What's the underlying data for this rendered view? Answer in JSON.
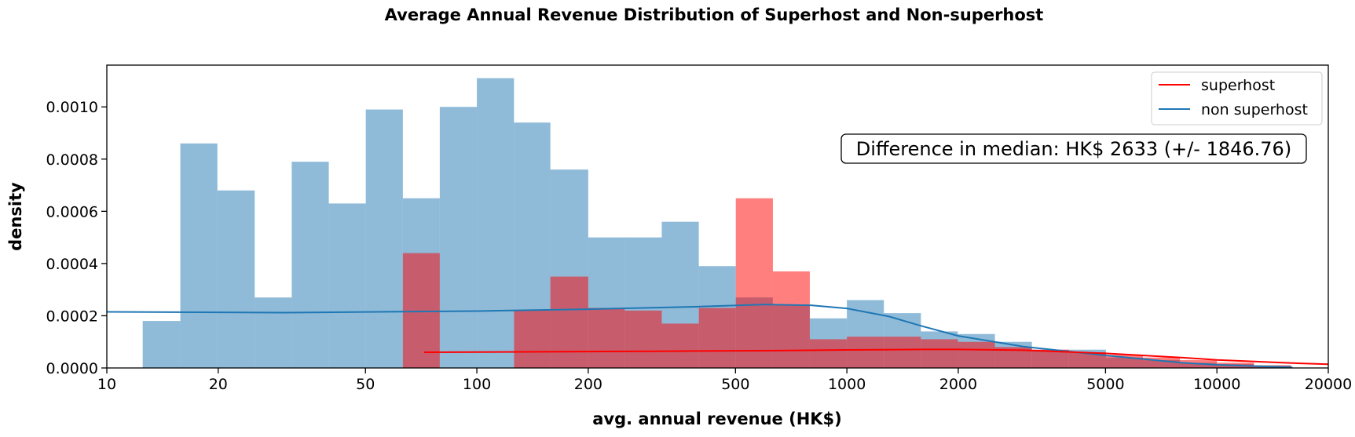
{
  "chart_data": {
    "type": "histogram",
    "title": "Average Annual Revenue Distribution of Superhost and Non-superhost",
    "xlabel": "avg. annual revenue (HK$)",
    "ylabel": "density",
    "xscale": "log",
    "xlim": [
      10,
      20000
    ],
    "ylim": [
      0,
      0.00116
    ],
    "xticks": [
      10,
      20,
      50,
      100,
      200,
      500,
      1000,
      2000,
      5000,
      10000,
      20000
    ],
    "xtick_labels": [
      "10",
      "20",
      "50",
      "100",
      "200",
      "500",
      "1000",
      "2000",
      "5000",
      "10000",
      "20000"
    ],
    "yticks": [
      0,
      0.0002,
      0.0004,
      0.0006,
      0.0008,
      0.001
    ],
    "ytick_labels": [
      "0.0000",
      "0.0002",
      "0.0004",
      "0.0006",
      "0.0008",
      "0.0010"
    ],
    "grid": false,
    "legend_position": "top-right",
    "bin_edges": [
      12.5,
      15.8,
      19.9,
      25.1,
      31.6,
      39.8,
      50.1,
      63.1,
      79.4,
      100,
      126,
      158,
      200,
      251,
      316,
      398,
      501,
      631,
      794,
      1000,
      1259,
      1585,
      1995,
      2512,
      3162,
      3981,
      5012,
      6310,
      7943,
      10000,
      12589,
      15849
    ],
    "series": [
      {
        "name": "non superhost",
        "color": "#1f77b4",
        "bar_color": "#8fb8d9",
        "densities": [
          0.00018,
          0.00086,
          0.00068,
          0.00027,
          0.00079,
          0.00063,
          0.00099,
          0.00065,
          0.001,
          0.00111,
          0.00094,
          0.00076,
          0.0005,
          0.0005,
          0.00056,
          0.00039,
          0.00027,
          0.00024,
          0.00019,
          0.00026,
          0.00021,
          0.00014,
          0.00013,
          0.0001,
          7e-05,
          7e-05,
          4e-05,
          3e-05,
          2e-05,
          1.5e-05,
          1e-05
        ],
        "kde": {
          "x": [
            10,
            30,
            100,
            200,
            400,
            600,
            800,
            1000,
            1300,
            1600,
            2000,
            3000,
            5000,
            8000,
            10000,
            16000
          ],
          "y": [
            0.000215,
            0.000212,
            0.000218,
            0.000225,
            0.000235,
            0.000243,
            0.00024,
            0.000228,
            0.000197,
            0.00016,
            0.000123,
            8.2e-05,
            4.8e-05,
            2e-05,
            1.2e-05,
            2e-06
          ]
        }
      },
      {
        "name": "superhost",
        "color": "#ff0000",
        "bar_color": "#ff8080",
        "densities": [
          0,
          0,
          0,
          0,
          0,
          0,
          0,
          0.00044,
          0,
          0,
          0.00022,
          0.00035,
          0.00023,
          0.00022,
          0.00017,
          0.00023,
          0.00065,
          0.00037,
          0.00011,
          0.00012,
          0.00012,
          0.00011,
          0.0001,
          8e-05,
          7e-05,
          6e-05,
          5e-05,
          4e-05,
          3e-05,
          2e-05,
          1e-05
        ],
        "kde": {
          "x": [
            72,
            150,
            300,
            600,
            1000,
            1600,
            2000,
            3000,
            5000,
            8000,
            10000,
            15000,
            20000
          ],
          "y": [
            6e-05,
            6.2e-05,
            6.4e-05,
            6.6e-05,
            6.9e-05,
            7.1e-05,
            7.1e-05,
            6.8e-05,
            5.6e-05,
            4e-05,
            3.1e-05,
            2e-05,
            1.4e-05
          ]
        }
      }
    ],
    "annotation": {
      "text": "Difference in median: HK$ 2633 (+/- 1846.76)"
    }
  }
}
